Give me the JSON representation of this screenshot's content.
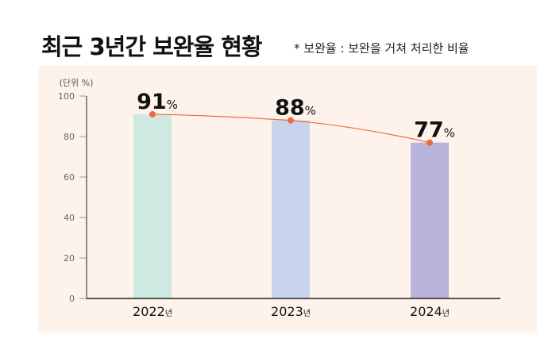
{
  "header": {
    "title": "최근 3년간 보완율 현황",
    "note": "* 보완율 : 보완을 거쳐 처리한 비율"
  },
  "chart_data": {
    "type": "bar",
    "title": "최근 3년간 보완율 현황",
    "unit_label": "(단위 %)",
    "categories": [
      "2022",
      "2023",
      "2024"
    ],
    "category_suffix": "년",
    "values": [
      91,
      88,
      77
    ],
    "value_suffix": "%",
    "ylim": [
      0,
      100
    ],
    "yticks": [
      0,
      20,
      40,
      60,
      80,
      100
    ],
    "bar_colors": [
      "#cde9e2",
      "#c9d4ec",
      "#b8b3d9"
    ],
    "line_color": "#ee6a3d",
    "background": "#fdf3ea",
    "overlay": "line"
  }
}
